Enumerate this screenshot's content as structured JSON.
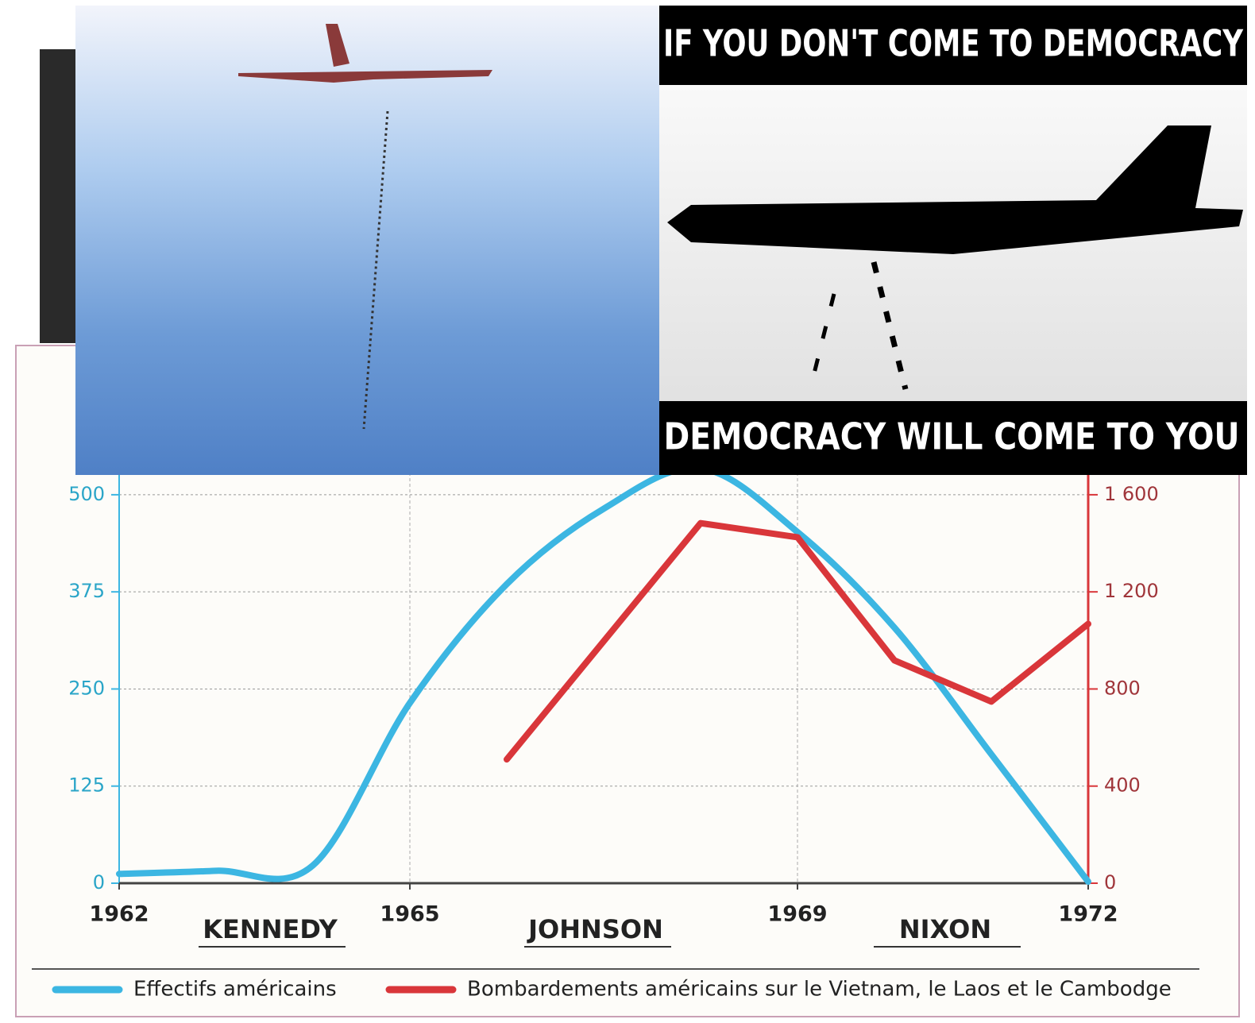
{
  "chart_data": {
    "type": "line",
    "xlim": [
      1962,
      1972
    ],
    "xticks": [
      1962,
      1965,
      1969,
      1972
    ],
    "ylim": [
      0,
      550
    ],
    "yticks": [
      0,
      125,
      250,
      375,
      500
    ],
    "y2lim": [
      0,
      1760
    ],
    "y2ticks": [
      0,
      400,
      800,
      {
        "value": 1200,
        "label": "1 200"
      },
      {
        "value": 1600,
        "label": "1 600"
      }
    ],
    "grid": true,
    "presidents": [
      "KENNEDY",
      "JOHNSON",
      "NIXON"
    ],
    "series": [
      {
        "name": "Effectifs américains",
        "color": "#3cb6e2",
        "x": [
          1962,
          1963,
          1964,
          1965,
          1966,
          1967,
          1968,
          1969,
          1970,
          1971,
          1972
        ],
        "values": [
          12,
          16,
          23,
          232,
          385,
          482,
          534,
          452,
          329,
          166,
          2
        ]
      },
      {
        "name": "Bombardements américains sur le Vietnam, le Laos et le Cambodge",
        "color": "#d9363a",
        "axis": "y2",
        "x": [
          1966,
          1968,
          1969,
          1970,
          1971,
          1972
        ],
        "values": [
          510,
          1483,
          1425,
          918,
          748,
          1068
        ]
      }
    ]
  },
  "meme": {
    "top_text": "IF YOU DON'T COME TO DEMOCRACY",
    "bottom_text": "DEMOCRACY WILL COME TO YOU"
  }
}
